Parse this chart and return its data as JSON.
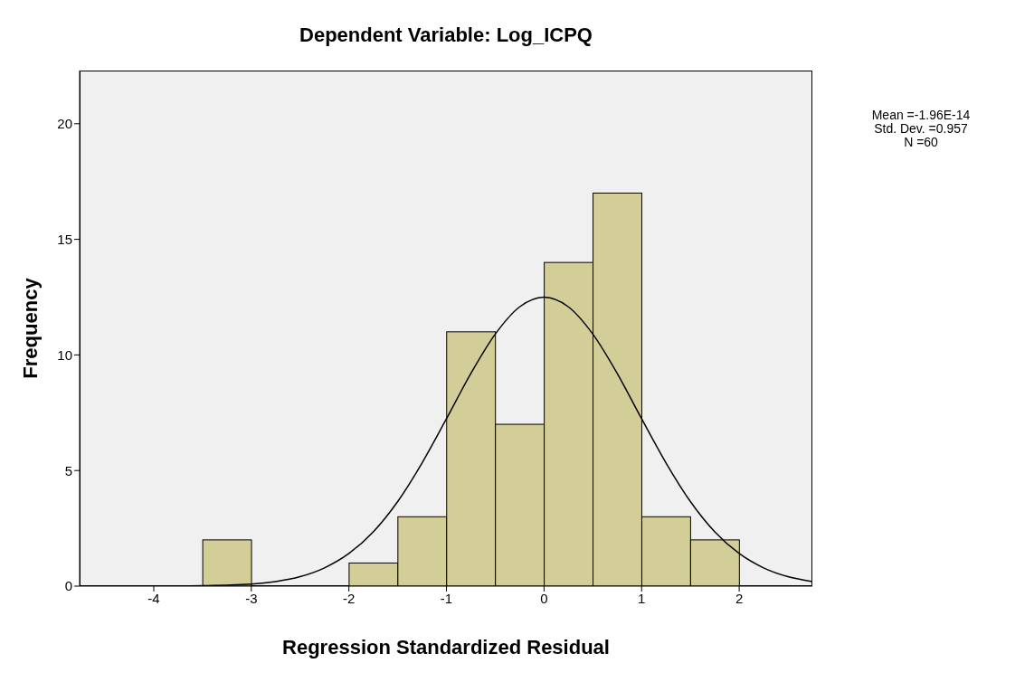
{
  "chart_data": {
    "type": "histogram",
    "title": "Dependent Variable: Log_ICPQ",
    "xlabel": "Regression Standardized Residual",
    "ylabel": "Frequency",
    "bins": [
      -3.5,
      -3,
      -2.5,
      -2,
      -1.5,
      -1,
      -0.5,
      0,
      0.5,
      1,
      1.5,
      2
    ],
    "values": [
      2,
      0,
      0,
      1,
      3,
      11,
      7,
      14,
      17,
      3,
      2
    ],
    "color": "#d3ce97",
    "series": [
      {
        "type": "line",
        "color": "#000000",
        "x": [
          -4.75,
          -4.5,
          -4,
          -3.5,
          -3,
          -2.75,
          -2.5,
          -2.25,
          -2,
          -1.75,
          -1.5,
          -1.25,
          -1,
          -0.75,
          -0.5,
          -0.25,
          0,
          0.25,
          0.5,
          0.75,
          1,
          1.25,
          1.5,
          1.75,
          2,
          2.25,
          2.5,
          2.75
        ],
        "values": [
          0,
          0,
          0,
          0.02,
          0.09,
          0.2,
          0.41,
          0.79,
          1.41,
          2.35,
          3.66,
          5.33,
          7.24,
          9.2,
          10.9,
          12.08,
          12.5,
          12.08,
          10.9,
          9.2,
          7.24,
          5.33,
          3.66,
          2.35,
          1.41,
          0.79,
          0.41,
          0.2
        ]
      }
    ],
    "annotations": [
      "Mean =-1.96E-14",
      "Std. Dev. =0.957",
      "N =60"
    ],
    "xlim": [
      -4.76,
      2.75
    ],
    "xticks": [
      -4,
      -3,
      -2,
      -1,
      0,
      1,
      2
    ],
    "ylim": [
      0,
      22.3
    ],
    "yticks": [
      0,
      5,
      10,
      15,
      20
    ],
    "grid": false,
    "legend": false
  }
}
